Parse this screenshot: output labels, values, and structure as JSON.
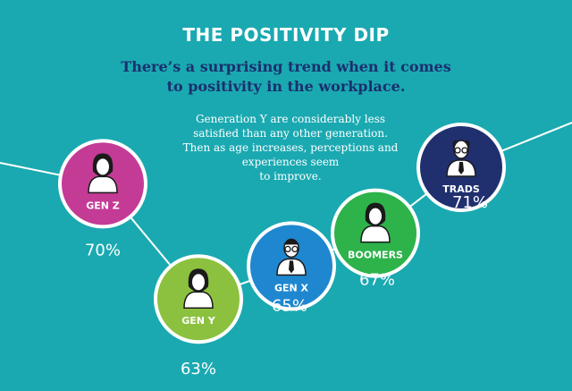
{
  "header": {
    "title": "THE POSITIVITY DIP",
    "subtitle_line1": "There’s a surprising trend when it comes",
    "subtitle_line2": "to positivity in the workplace."
  },
  "note": {
    "line1": "Generation Y are considerably less",
    "line2": "satisfied than any other generation.",
    "line3": "Then as age increases, perceptions and",
    "line4": "experiences seem",
    "line5": "to improve."
  },
  "chart_data": {
    "type": "line",
    "categories": [
      "GEN Z",
      "GEN Y",
      "GEN X",
      "BOOMERS",
      "TRADS"
    ],
    "values": [
      70,
      63,
      65,
      67,
      71
    ],
    "value_labels": [
      "70%",
      "63%",
      "65%",
      "67%",
      "71%"
    ],
    "colors": [
      "#c43b96",
      "#8cc13f",
      "#1f87d0",
      "#2db34a",
      "#20306f"
    ],
    "icons": [
      "female-person-icon",
      "female-person-icon",
      "male-glasses-person-icon",
      "female-person-icon",
      "male-elder-person-icon"
    ],
    "line_color": "#ffffff",
    "background": "#1aa9b1"
  }
}
